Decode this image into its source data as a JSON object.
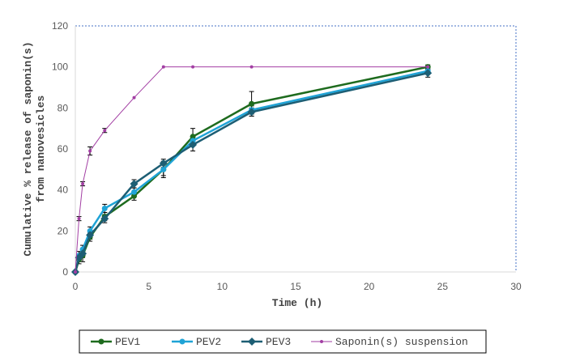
{
  "chart_data": {
    "type": "line",
    "xlabel": "Time (h)",
    "ylabel": [
      "Cumulative % release of saponin(s)",
      "from nanovesicles"
    ],
    "xlim": [
      0,
      30
    ],
    "ylim": [
      0,
      120
    ],
    "xticks": [
      0,
      5,
      10,
      15,
      20,
      25,
      30
    ],
    "yticks": [
      0,
      20,
      40,
      60,
      80,
      100,
      120
    ],
    "legend_position": "bottom",
    "series": [
      {
        "name": "PEV1",
        "color": "#1e6b1e",
        "marker": "circle",
        "x": [
          0,
          0.25,
          0.5,
          1,
          2,
          4,
          6,
          8,
          12,
          24
        ],
        "y": [
          0,
          6,
          8,
          17,
          27,
          37,
          50,
          66,
          82,
          100
        ],
        "err": [
          0,
          2,
          3,
          2,
          2,
          2,
          4,
          4,
          6,
          1
        ]
      },
      {
        "name": "PEV2",
        "color": "#1fa3d6",
        "marker": "circle",
        "x": [
          0,
          0.25,
          0.5,
          1,
          2,
          4,
          6,
          8,
          12,
          24
        ],
        "y": [
          0,
          8,
          11,
          20,
          31,
          39,
          50,
          64,
          79,
          98
        ],
        "err": [
          0,
          2,
          2,
          2,
          2,
          2,
          3,
          2,
          2,
          1
        ]
      },
      {
        "name": "PEV3",
        "color": "#1d5e74",
        "marker": "diamond",
        "x": [
          0,
          0.25,
          0.5,
          1,
          2,
          4,
          6,
          8,
          12,
          24
        ],
        "y": [
          0,
          7,
          9,
          18,
          26,
          43,
          53,
          62,
          78,
          97
        ],
        "err": [
          0,
          1,
          2,
          2,
          2,
          2,
          2,
          3,
          2,
          2
        ]
      },
      {
        "name": "Saponin(s) suspension",
        "color": "#a23ea3",
        "marker": "small",
        "x": [
          0,
          0.25,
          0.5,
          1,
          2,
          4,
          6,
          8,
          12,
          24
        ],
        "y": [
          0,
          26,
          43,
          59,
          69,
          85,
          100,
          100,
          100,
          100
        ],
        "err": [
          0,
          1,
          1,
          2,
          1,
          0,
          0,
          0,
          0,
          0
        ]
      }
    ]
  }
}
